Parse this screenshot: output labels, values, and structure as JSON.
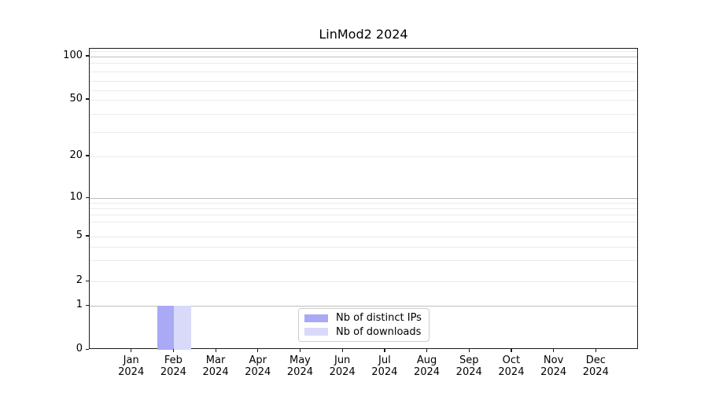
{
  "title": "LinMod2 2024",
  "chart_data": {
    "type": "bar",
    "title": "LinMod2 2024",
    "categories": [
      "Jan 2024",
      "Feb 2024",
      "Mar 2024",
      "Apr 2024",
      "May 2024",
      "Jun 2024",
      "Jul 2024",
      "Aug 2024",
      "Sep 2024",
      "Oct 2024",
      "Nov 2024",
      "Dec 2024"
    ],
    "series": [
      {
        "name": "Nb of distinct IPs",
        "color": "#a9a9f5",
        "values": [
          0,
          1,
          0,
          0,
          0,
          0,
          0,
          0,
          0,
          0,
          0,
          0
        ]
      },
      {
        "name": "Nb of downloads",
        "color": "#d9d9fa",
        "values": [
          0,
          1,
          0,
          0,
          0,
          0,
          0,
          0,
          0,
          0,
          0,
          0
        ]
      }
    ],
    "xlabel": "",
    "ylabel": "",
    "y_scale": "log-like with zero baseline",
    "y_ticks": [
      100,
      50,
      20,
      10,
      5,
      2,
      1,
      0
    ],
    "ylim": [
      0,
      110
    ],
    "grid": "horizontal major and minor gridlines",
    "legend_position": "lower center inside plot"
  },
  "axes": {
    "y_tick_labels": [
      "100",
      "50",
      "20",
      "10",
      "5",
      "2",
      "1",
      "0"
    ],
    "x_tick_months": [
      "Jan",
      "Feb",
      "Mar",
      "Apr",
      "May",
      "Jun",
      "Jul",
      "Aug",
      "Sep",
      "Oct",
      "Nov",
      "Dec"
    ],
    "x_tick_year": "2024"
  },
  "legend": {
    "items": [
      {
        "label": "Nb of distinct IPs",
        "color": "#a9a9f5"
      },
      {
        "label": "Nb of downloads",
        "color": "#d9d9fa"
      }
    ]
  }
}
